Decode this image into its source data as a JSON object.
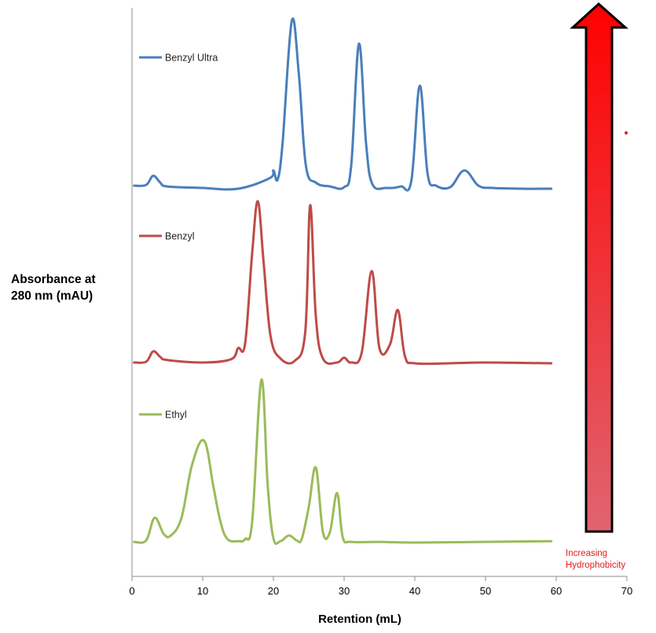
{
  "chart_data": {
    "type": "line",
    "title": "",
    "xlabel": "Retention (mL)",
    "ylabel": [
      "Absorbance at",
      "280 nm (mAU)"
    ],
    "xlim": [
      0,
      70
    ],
    "xticks": [
      0,
      10,
      20,
      30,
      40,
      50,
      60,
      70
    ],
    "grid": false,
    "legend_position": "inline-left",
    "annotation": {
      "text": [
        "Increasing",
        "Hydrophobicity"
      ],
      "color": "#e8191c"
    },
    "series": [
      {
        "name": "Benzyl Ultra",
        "color": "#4a7ebb",
        "x": [
          0.3,
          2.0,
          3.0,
          4.0,
          5.0,
          10.0,
          15.0,
          19.5,
          20.0,
          20.6,
          21.3,
          22.6,
          23.6,
          24.6,
          26.0,
          28.0,
          30.0,
          31.0,
          32.1,
          33.1,
          34.0,
          36.0,
          38.0,
          39.5,
          40.7,
          41.8,
          43.0,
          45.0,
          47.0,
          49.0,
          51.0,
          55.0,
          59.3
        ],
        "y": [
          0.4,
          0.5,
          1.7,
          0.8,
          0.3,
          0.1,
          0.0,
          1.4,
          2.4,
          1.2,
          6.0,
          22.0,
          15.0,
          3.0,
          0.8,
          0.3,
          0.2,
          3.0,
          19.0,
          6.0,
          0.6,
          0.1,
          0.3,
          1.0,
          13.5,
          2.0,
          0.4,
          0.2,
          2.4,
          0.4,
          0.1,
          0.0,
          0.0
        ]
      },
      {
        "name": "Benzyl",
        "color": "#be4b48",
        "x": [
          0.3,
          2.0,
          3.0,
          4.0,
          5.0,
          10.0,
          14.0,
          15.0,
          16.0,
          17.0,
          17.8,
          18.6,
          19.6,
          21.0,
          23.0,
          24.5,
          25.2,
          26.0,
          27.0,
          29.0,
          30.0,
          31.0,
          32.5,
          33.9,
          35.0,
          36.5,
          37.6,
          38.6,
          40.0,
          45.0,
          50.0,
          59.3
        ],
        "y": [
          0.2,
          0.3,
          1.6,
          0.9,
          0.5,
          0.2,
          0.6,
          2.0,
          2.6,
          14.0,
          20.5,
          13.0,
          3.5,
          0.7,
          0.4,
          4.0,
          20.0,
          6.0,
          0.7,
          0.2,
          0.8,
          0.2,
          1.5,
          11.7,
          2.0,
          2.5,
          6.8,
          1.0,
          0.1,
          0.1,
          0.2,
          0.1
        ]
      },
      {
        "name": "Ethyl",
        "color": "#9bbb59",
        "x": [
          0.3,
          2.0,
          3.2,
          4.5,
          5.5,
          7.0,
          8.5,
          10.2,
          11.5,
          12.5,
          13.5,
          15.0,
          16.0,
          17.0,
          18.3,
          19.2,
          20.0,
          21.0,
          22.2,
          23.3,
          24.0,
          25.0,
          26.0,
          27.0,
          28.0,
          29.0,
          29.8,
          31.0,
          35.0,
          40.0,
          50.0,
          59.3
        ],
        "y": [
          0.1,
          0.3,
          3.5,
          1.2,
          1.0,
          3.5,
          11.0,
          14.4,
          8.0,
          3.0,
          0.5,
          0.2,
          0.5,
          3.0,
          23.0,
          8.0,
          0.6,
          0.2,
          1.0,
          0.3,
          0.5,
          5.0,
          10.6,
          1.5,
          1.5,
          7.0,
          0.8,
          0.1,
          0.1,
          0.0,
          0.1,
          0.2
        ]
      }
    ]
  }
}
